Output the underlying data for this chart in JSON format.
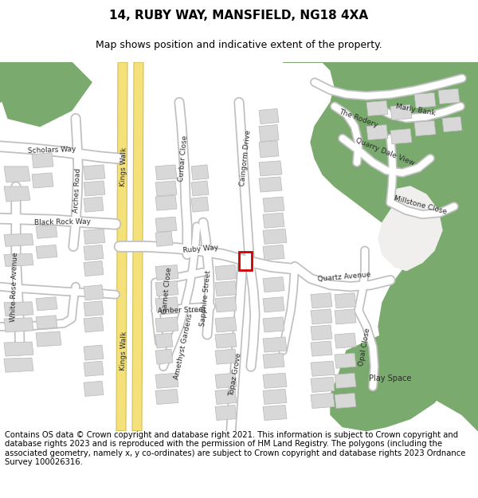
{
  "title": "14, RUBY WAY, MANSFIELD, NG18 4XA",
  "subtitle": "Map shows position and indicative extent of the property.",
  "footer": "Contains OS data © Crown copyright and database right 2021. This information is subject to Crown copyright and database rights 2023 and is reproduced with the permission of HM Land Registry. The polygons (including the associated geometry, namely x, y co-ordinates) are subject to Crown copyright and database rights 2023 Ordnance Survey 100026316.",
  "map_bg": "#f0efed",
  "green_color": "#7aaa6e",
  "road_color": "#ffffff",
  "road_outline": "#c8c8c8",
  "yellow_road_fill": "#f5e17a",
  "yellow_road_edge": "#d4be5a",
  "building_fill": "#d8d8d8",
  "building_outline": "#b8b8b8",
  "property_color": "#cc0000",
  "title_fontsize": 11,
  "subtitle_fontsize": 9,
  "footer_fontsize": 7.2
}
